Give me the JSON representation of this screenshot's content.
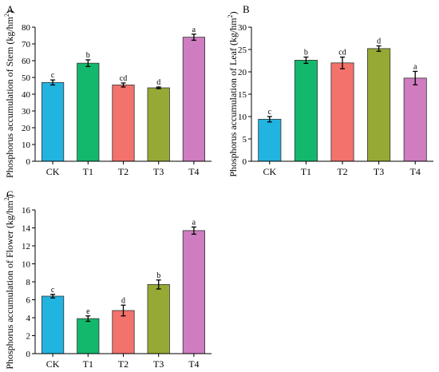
{
  "chart_data": [
    {
      "type": "bar",
      "panel": "A",
      "ylabel_main": "Phosphorus accumulation of Stem (kg/hm",
      "ylabel_sup": "2",
      "ylabel_end": ")",
      "categories": [
        "CK",
        "T1",
        "T2",
        "T3",
        "T4"
      ],
      "values": [
        47,
        58.5,
        45.5,
        43.8,
        74
      ],
      "errors": [
        1.5,
        2,
        1.2,
        0.5,
        1.8
      ],
      "letters": [
        "c",
        "b",
        "cd",
        "d",
        "a"
      ],
      "ylim": [
        0,
        80
      ],
      "yticks": [
        0,
        10,
        20,
        30,
        40,
        50,
        60,
        70,
        80
      ]
    },
    {
      "type": "bar",
      "panel": "B",
      "ylabel_main": "Phosphorus accumulation of Leaf (kg/hm",
      "ylabel_sup": "2",
      "ylabel_end": ")",
      "categories": [
        "CK",
        "T1",
        "T2",
        "T3",
        "T4"
      ],
      "values": [
        9.4,
        22.6,
        22,
        25.2,
        18.6
      ],
      "errors": [
        0.6,
        0.7,
        1.3,
        0.6,
        1.5
      ],
      "letters": [
        "c",
        "b",
        "cd",
        "d",
        "a"
      ],
      "ylim": [
        0,
        30
      ],
      "yticks": [
        0,
        5,
        10,
        15,
        20,
        25,
        30
      ]
    },
    {
      "type": "bar",
      "panel": "C",
      "ylabel_main": "Phosphorus accumulation of Flower (kg/hm",
      "ylabel_sup": "2",
      "ylabel_end": ")",
      "categories": [
        "CK",
        "T1",
        "T2",
        "T3",
        "T4"
      ],
      "values": [
        6.4,
        3.9,
        4.8,
        7.7,
        13.7
      ],
      "errors": [
        0.2,
        0.3,
        0.6,
        0.5,
        0.4
      ],
      "letters": [
        "c",
        "e",
        "d",
        "b",
        "a"
      ],
      "ylim": [
        0,
        16
      ],
      "yticks": [
        0,
        2,
        4,
        6,
        8,
        10,
        12,
        14,
        16
      ]
    }
  ],
  "colors": [
    "#22b4e0",
    "#13b86c",
    "#f3726c",
    "#97a935",
    "#cf7cc0"
  ]
}
